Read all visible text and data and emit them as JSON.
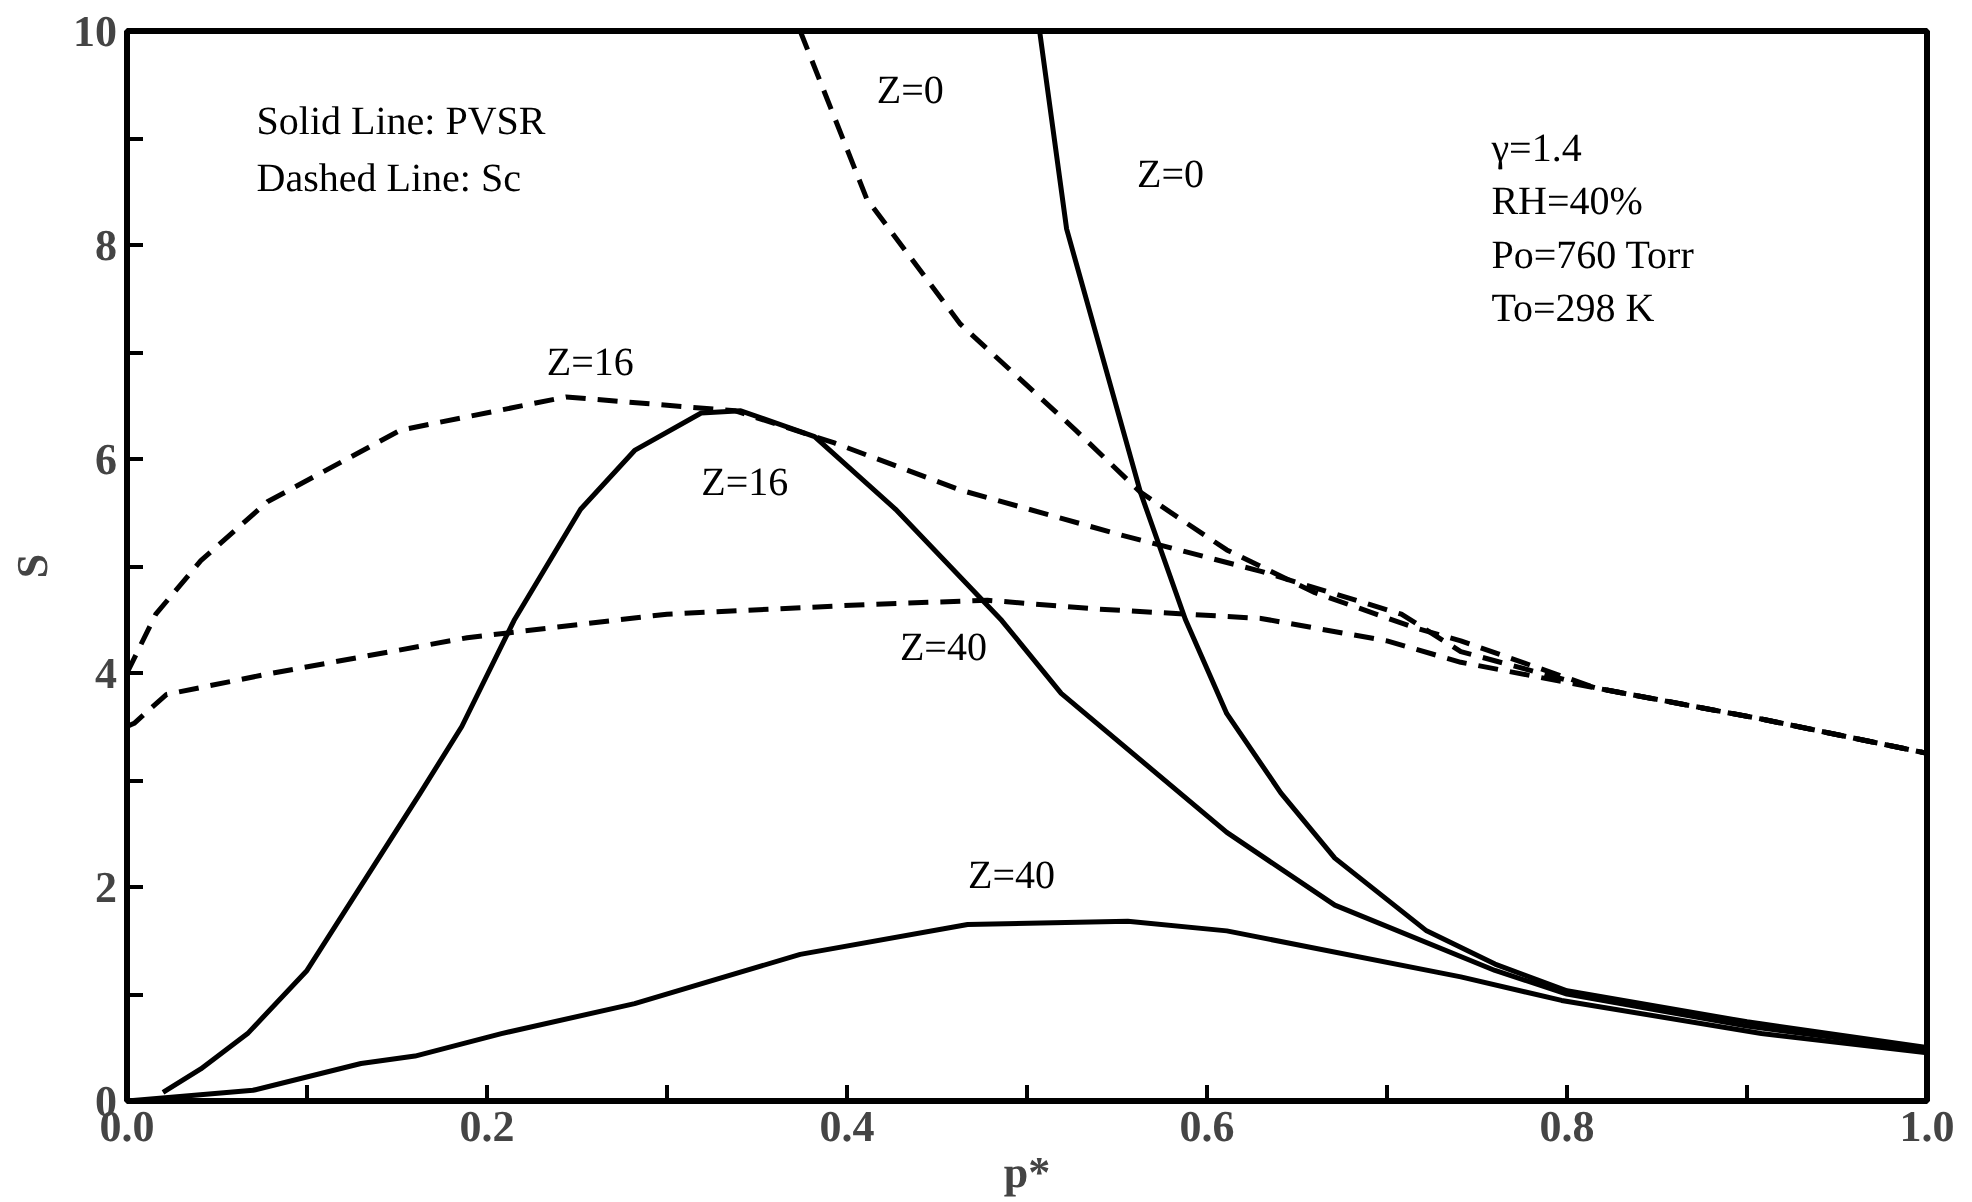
{
  "chart_data": {
    "type": "line",
    "xlabel": "p*",
    "ylabel": "S",
    "xlim": [
      0,
      1
    ],
    "ylim": [
      0,
      10
    ],
    "xticks": [
      {
        "value": 0,
        "label": "0.0"
      },
      {
        "value": 0.1,
        "label": null
      },
      {
        "value": 0.2,
        "label": "0.2"
      },
      {
        "value": 0.3,
        "label": null
      },
      {
        "value": 0.4,
        "label": "0.4"
      },
      {
        "value": 0.5,
        "label": null
      },
      {
        "value": 0.6,
        "label": "0.6"
      },
      {
        "value": 0.7,
        "label": null
      },
      {
        "value": 0.8,
        "label": "0.8"
      },
      {
        "value": 0.9,
        "label": null
      },
      {
        "value": 1,
        "label": "1.0"
      }
    ],
    "yticks": [
      0,
      {
        "value": 1,
        "label": null
      },
      2,
      {
        "value": 3,
        "label": null
      },
      4,
      {
        "value": 5,
        "label": null
      },
      6,
      {
        "value": 7,
        "label": null
      },
      8,
      {
        "value": 9,
        "label": null
      },
      10
    ],
    "grid": false,
    "legend": false,
    "marker": "none",
    "annotations": [
      "Solid Line: PVSR",
      "Dashed Line: Sc",
      "γ=1.4",
      "RH=40%",
      "Po=760 Torr",
      "To=298 K"
    ],
    "series": [
      {
        "name": "Z=0",
        "color": "#000000",
        "line_style": "dashed",
        "x": [
          0.374,
          0.411,
          0.463,
          0.527,
          0.563,
          0.611,
          0.66,
          0.716,
          0.741,
          0.816,
          0.908,
          1.0
        ],
        "values": [
          10,
          8.43,
          7.26,
          6.27,
          5.69,
          5.15,
          4.75,
          4.42,
          4.3,
          3.86,
          3.57,
          3.25
        ]
      },
      {
        "name": "Z=0",
        "color": "#000000",
        "line_style": "solid",
        "x": [
          0.507,
          0.522,
          0.563,
          0.588,
          0.611,
          0.641,
          0.671,
          0.722,
          0.76,
          0.8,
          0.9,
          1.0
        ],
        "values": [
          10,
          8.15,
          5.69,
          4.5,
          3.62,
          2.88,
          2.27,
          1.59,
          1.28,
          1.03,
          0.74,
          0.5
        ]
      },
      {
        "name": "Z=16",
        "color": "#000000",
        "line_style": "dashed",
        "x": [
          0,
          0.016,
          0.041,
          0.078,
          0.152,
          0.244,
          0.338,
          0.393,
          0.463,
          0.55,
          0.63,
          0.708,
          0.741,
          0.816,
          0.908,
          1.0
        ],
        "values": [
          4.0,
          4.55,
          5.05,
          5.6,
          6.27,
          6.58,
          6.45,
          6.15,
          5.71,
          5.3,
          4.95,
          4.55,
          4.2,
          3.86,
          3.57,
          3.25
        ]
      },
      {
        "name": "Z=16",
        "color": "#000000",
        "line_style": "solid",
        "x": [
          0.02,
          0.041,
          0.067,
          0.1,
          0.163,
          0.186,
          0.215,
          0.252,
          0.282,
          0.319,
          0.341,
          0.382,
          0.427,
          0.486,
          0.519,
          0.611,
          0.671,
          0.76,
          0.8,
          0.9,
          1.0
        ],
        "values": [
          0.08,
          0.3,
          0.63,
          1.22,
          2.88,
          3.5,
          4.49,
          5.53,
          6.08,
          6.43,
          6.45,
          6.21,
          5.53,
          4.49,
          3.81,
          2.51,
          1.83,
          1.22,
          1.0,
          0.7,
          0.48
        ]
      },
      {
        "name": "Z=40",
        "color": "#000000",
        "line_style": "dashed",
        "x": [
          0,
          0.004,
          0.022,
          0.078,
          0.189,
          0.3,
          0.411,
          0.478,
          0.537,
          0.63,
          0.7,
          0.741,
          0.816,
          0.908,
          1.0
        ],
        "values": [
          3.5,
          3.53,
          3.8,
          3.99,
          4.33,
          4.55,
          4.64,
          4.68,
          4.6,
          4.51,
          4.3,
          4.1,
          3.86,
          3.57,
          3.25
        ]
      },
      {
        "name": "Z=40",
        "color": "#000000",
        "line_style": "solid",
        "x": [
          0,
          0.07,
          0.13,
          0.16,
          0.208,
          0.282,
          0.374,
          0.467,
          0.556,
          0.611,
          0.741,
          0.797,
          0.908,
          1.0
        ],
        "values": [
          0,
          0.1,
          0.35,
          0.42,
          0.63,
          0.91,
          1.37,
          1.65,
          1.68,
          1.59,
          1.16,
          0.94,
          0.63,
          0.45
        ]
      }
    ]
  }
}
